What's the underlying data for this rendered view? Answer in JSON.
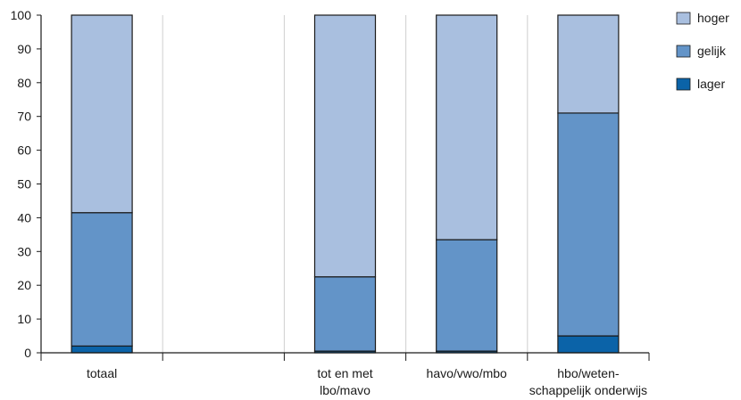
{
  "chart_data": {
    "type": "bar",
    "stacked": true,
    "categories": [
      [
        "totaal"
      ],
      [],
      [
        "tot en met",
        "lbo/mavo"
      ],
      [
        "havo/vwo/mbo"
      ],
      [
        "hbo/weten-",
        "schappelijk onderwijs"
      ]
    ],
    "series": [
      {
        "name": "lager",
        "color": "#0b63a8",
        "values": [
          2,
          null,
          0.5,
          0.5,
          5
        ]
      },
      {
        "name": "gelijk",
        "color": "#6394c8",
        "values": [
          39.5,
          null,
          22,
          33,
          66
        ]
      },
      {
        "name": "hoger",
        "color": "#a9bfdf",
        "values": [
          58.5,
          null,
          77.5,
          66.5,
          29
        ]
      }
    ],
    "yticks": [
      "0",
      "10",
      "20",
      "30",
      "40",
      "50",
      "60",
      "70",
      "80",
      "90",
      "100"
    ],
    "ylim": [
      0,
      100
    ],
    "grid": true,
    "legend_position": "top-right",
    "legend_order": [
      "hoger",
      "gelijk",
      "lager"
    ]
  }
}
